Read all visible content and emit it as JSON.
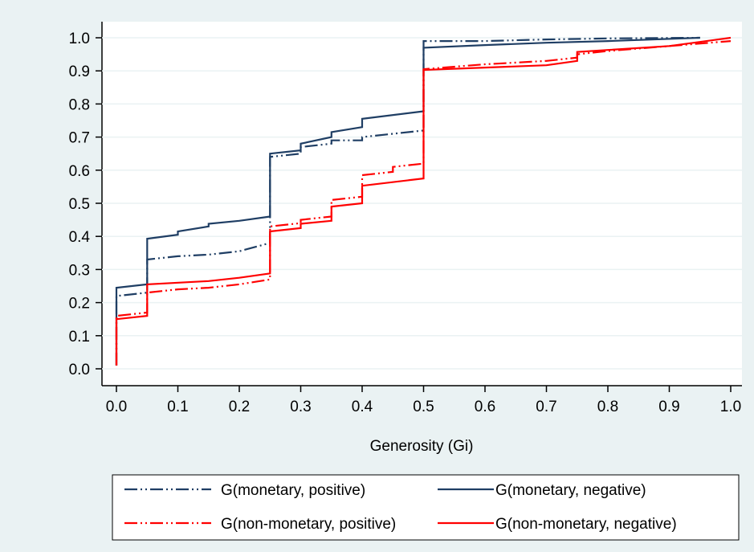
{
  "chart_data": {
    "type": "line",
    "title": "",
    "xlabel": "Generosity (Gi)",
    "ylabel": "",
    "xlim": [
      0,
      1
    ],
    "ylim": [
      0,
      1
    ],
    "xticks": [
      "0.0",
      "0.1",
      "0.2",
      "0.3",
      "0.4",
      "0.5",
      "0.6",
      "0.7",
      "0.8",
      "0.9",
      "1.0"
    ],
    "yticks": [
      "0.0",
      "0.1",
      "0.2",
      "0.3",
      "0.4",
      "0.5",
      "0.6",
      "0.7",
      "0.8",
      "0.9",
      "1.0"
    ],
    "grid": "horizontal",
    "legend_position": "bottom",
    "series": [
      {
        "name": "G(monetary, positive)",
        "color": "#1f3e64",
        "style": "dash-dot-dot",
        "x": [
          0,
          0,
          0.05,
          0.05,
          0.1,
          0.15,
          0.2,
          0.25,
          0.25,
          0.3,
          0.3,
          0.35,
          0.35,
          0.4,
          0.4,
          0.45,
          0.5,
          0.5,
          0.6,
          0.7,
          0.8,
          0.95
        ],
        "y": [
          0.01,
          0.22,
          0.23,
          0.33,
          0.34,
          0.345,
          0.355,
          0.38,
          0.64,
          0.65,
          0.67,
          0.68,
          0.69,
          0.69,
          0.7,
          0.71,
          0.72,
          0.99,
          0.99,
          0.995,
          0.998,
          1.0
        ]
      },
      {
        "name": "G(monetary, negative)",
        "color": "#1f3e64",
        "style": "solid",
        "x": [
          0,
          0,
          0.05,
          0.05,
          0.1,
          0.1,
          0.15,
          0.15,
          0.2,
          0.25,
          0.25,
          0.3,
          0.3,
          0.35,
          0.35,
          0.4,
          0.4,
          0.5,
          0.5,
          0.6,
          0.7,
          0.8,
          0.95
        ],
        "y": [
          0.01,
          0.245,
          0.255,
          0.393,
          0.405,
          0.415,
          0.43,
          0.438,
          0.447,
          0.46,
          0.65,
          0.66,
          0.68,
          0.7,
          0.715,
          0.73,
          0.755,
          0.778,
          0.97,
          0.978,
          0.985,
          0.99,
          1.0
        ]
      },
      {
        "name": "G(non-monetary, positive)",
        "color": "#ff0000",
        "style": "dash-dot-dot",
        "x": [
          0,
          0,
          0.05,
          0.05,
          0.1,
          0.15,
          0.2,
          0.25,
          0.25,
          0.3,
          0.3,
          0.35,
          0.35,
          0.4,
          0.4,
          0.45,
          0.45,
          0.5,
          0.5,
          0.6,
          0.7,
          0.75,
          0.75,
          0.8,
          0.9,
          1.0
        ],
        "y": [
          0.01,
          0.16,
          0.17,
          0.23,
          0.24,
          0.245,
          0.255,
          0.27,
          0.43,
          0.44,
          0.45,
          0.46,
          0.51,
          0.52,
          0.585,
          0.595,
          0.61,
          0.62,
          0.905,
          0.92,
          0.93,
          0.94,
          0.95,
          0.96,
          0.975,
          0.99
        ]
      },
      {
        "name": "G(non-monetary, negative)",
        "color": "#ff0000",
        "style": "solid",
        "x": [
          0,
          0,
          0.05,
          0.05,
          0.15,
          0.2,
          0.25,
          0.25,
          0.3,
          0.3,
          0.35,
          0.35,
          0.4,
          0.4,
          0.5,
          0.5,
          0.6,
          0.7,
          0.75,
          0.75,
          0.8,
          0.9,
          1.0
        ],
        "y": [
          0.01,
          0.15,
          0.16,
          0.255,
          0.265,
          0.275,
          0.288,
          0.415,
          0.425,
          0.438,
          0.447,
          0.49,
          0.5,
          0.553,
          0.575,
          0.903,
          0.91,
          0.917,
          0.93,
          0.957,
          0.963,
          0.975,
          1.0
        ]
      }
    ]
  }
}
